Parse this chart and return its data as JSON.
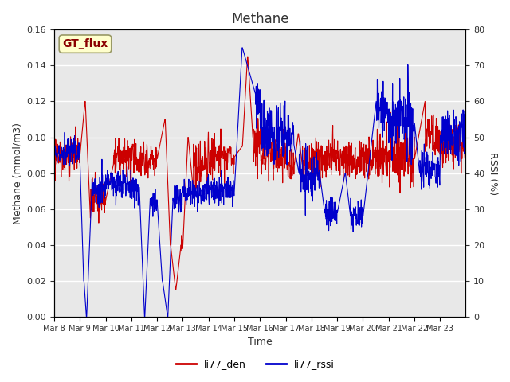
{
  "title": "Methane",
  "xlabel": "Time",
  "ylabel_left": "Methane (mmol/m3)",
  "ylabel_right": "RSSI (%)",
  "legend_label_red": "li77_den",
  "legend_label_blue": "li77_rssi",
  "annotation_text": "GT_flux",
  "annotation_bg": "#ffffcc",
  "annotation_border": "#999966",
  "ylim_left": [
    0,
    0.16
  ],
  "ylim_right": [
    0,
    80
  ],
  "yticks_left": [
    0.0,
    0.02,
    0.04,
    0.06,
    0.08,
    0.1,
    0.12,
    0.14,
    0.16
  ],
  "yticks_right": [
    0,
    10,
    20,
    30,
    40,
    50,
    60,
    70,
    80
  ],
  "xtick_labels": [
    "Mar 8",
    "Mar 9",
    "Mar 10",
    "Mar 11",
    "Mar 12",
    "Mar 13",
    "Mar 14",
    "Mar 15",
    "Mar 16",
    "Mar 17",
    "Mar 18",
    "Mar 19",
    "Mar 20",
    "Mar 21",
    "Mar 22",
    "Mar 23"
  ],
  "n_days": 16,
  "bg_color": "#e8e8e8",
  "line_color_red": "#cc0000",
  "line_color_blue": "#0000cc",
  "grid_color": "#ffffff",
  "font_color": "#333333"
}
